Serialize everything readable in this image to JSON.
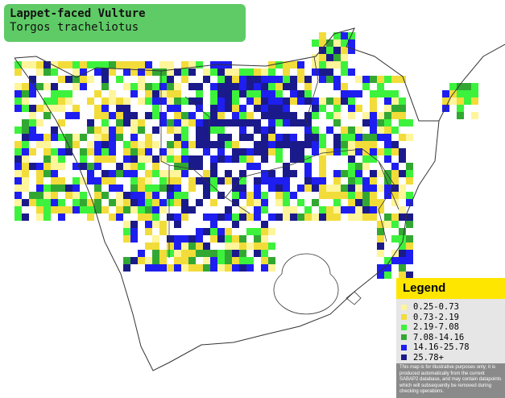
{
  "header": {
    "title": "Lappet-faced Vulture",
    "subtitle": "Torgos tracheliotus"
  },
  "legend": {
    "title": "Legend",
    "entries": [
      {
        "label": "0.25-0.73",
        "color": "#fff59a"
      },
      {
        "label": "0.73-2.19",
        "color": "#f2dc3a"
      },
      {
        "label": "2.19-7.08",
        "color": "#3df23d"
      },
      {
        "label": "7.08-14.16",
        "color": "#32a832"
      },
      {
        "label": "14.16-25.78",
        "color": "#1e1ef0"
      },
      {
        "label": "25.78+",
        "color": "#1a1a8a"
      }
    ],
    "note": "This map is for illustrative purposes only; it is produced automatically from the current SABAP2 database, and may contain datapoints which will subsequently be removed during checking operations."
  }
}
